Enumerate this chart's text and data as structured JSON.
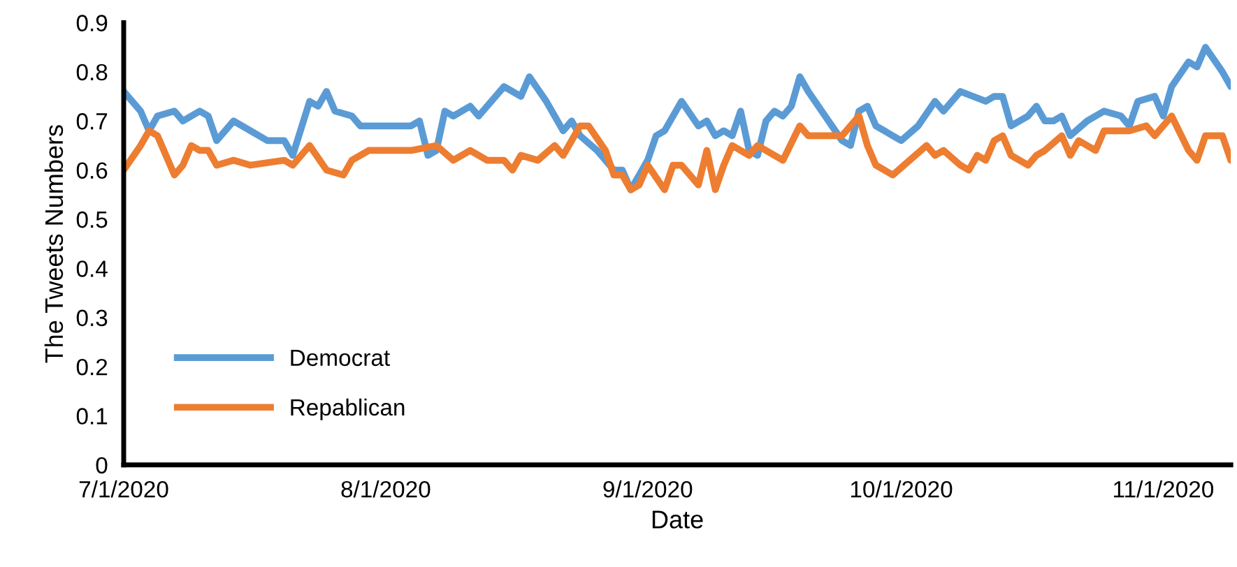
{
  "chart_data": {
    "type": "line",
    "xlabel": "Date",
    "ylabel": "The Tweets Numbers",
    "xlim": [
      "2020-07-01",
      "2020-11-09"
    ],
    "ylim": [
      0,
      0.9
    ],
    "xticks": [
      {
        "value": "2020-07-01",
        "label": "7/1/2020"
      },
      {
        "value": "2020-08-01",
        "label": "8/1/2020"
      },
      {
        "value": "2020-09-01",
        "label": "9/1/2020"
      },
      {
        "value": "2020-10-01",
        "label": "10/1/2020"
      },
      {
        "value": "2020-11-01",
        "label": "11/1/2020"
      }
    ],
    "yticks": [
      0,
      0.1,
      0.2,
      0.3,
      0.4,
      0.5,
      0.6,
      0.7,
      0.8,
      0.9
    ],
    "grid": false,
    "legend": "bottom left",
    "marker": "none",
    "line_style": "solid",
    "series": [
      {
        "name": "Democrat",
        "color": "#5b9bd5",
        "x": [
          "2020-07-01",
          "2020-07-03",
          "2020-07-04",
          "2020-07-05",
          "2020-07-07",
          "2020-07-08",
          "2020-07-10",
          "2020-07-11",
          "2020-07-12",
          "2020-07-14",
          "2020-07-16",
          "2020-07-18",
          "2020-07-20",
          "2020-07-21",
          "2020-07-23",
          "2020-07-24",
          "2020-07-25",
          "2020-07-26",
          "2020-07-28",
          "2020-07-29",
          "2020-07-30",
          "2020-08-04",
          "2020-08-05",
          "2020-08-06",
          "2020-08-07",
          "2020-08-08",
          "2020-08-09",
          "2020-08-11",
          "2020-08-12",
          "2020-08-13",
          "2020-08-15",
          "2020-08-17",
          "2020-08-18",
          "2020-08-20",
          "2020-08-22",
          "2020-08-23",
          "2020-08-24",
          "2020-08-26",
          "2020-08-28",
          "2020-08-29",
          "2020-08-30",
          "2020-09-01",
          "2020-09-02",
          "2020-09-03",
          "2020-09-05",
          "2020-09-07",
          "2020-09-08",
          "2020-09-09",
          "2020-09-10",
          "2020-09-11",
          "2020-09-12",
          "2020-09-13",
          "2020-09-14",
          "2020-09-15",
          "2020-09-16",
          "2020-09-17",
          "2020-09-18",
          "2020-09-19",
          "2020-09-20",
          "2020-09-22",
          "2020-09-24",
          "2020-09-25",
          "2020-09-26",
          "2020-09-27",
          "2020-09-28",
          "2020-09-29",
          "2020-10-01",
          "2020-10-03",
          "2020-10-05",
          "2020-10-06",
          "2020-10-08",
          "2020-10-11",
          "2020-10-12",
          "2020-10-13",
          "2020-10-14",
          "2020-10-16",
          "2020-10-17",
          "2020-10-18",
          "2020-10-19",
          "2020-10-20",
          "2020-10-21",
          "2020-10-23",
          "2020-10-25",
          "2020-10-27",
          "2020-10-28",
          "2020-10-29",
          "2020-10-31",
          "2020-11-01",
          "2020-11-02",
          "2020-11-04",
          "2020-11-05",
          "2020-11-06",
          "2020-11-08",
          "2020-11-09"
        ],
        "values": [
          0.76,
          0.72,
          0.68,
          0.71,
          0.72,
          0.7,
          0.72,
          0.71,
          0.66,
          0.7,
          0.68,
          0.66,
          0.66,
          0.63,
          0.74,
          0.73,
          0.76,
          0.72,
          0.71,
          0.69,
          0.69,
          0.69,
          0.7,
          0.63,
          0.64,
          0.72,
          0.71,
          0.73,
          0.71,
          0.73,
          0.77,
          0.75,
          0.79,
          0.74,
          0.68,
          0.7,
          0.67,
          0.64,
          0.6,
          0.6,
          0.56,
          0.62,
          0.67,
          0.68,
          0.74,
          0.69,
          0.7,
          0.67,
          0.68,
          0.67,
          0.72,
          0.64,
          0.63,
          0.7,
          0.72,
          0.71,
          0.73,
          0.79,
          0.76,
          0.71,
          0.66,
          0.65,
          0.72,
          0.73,
          0.69,
          0.68,
          0.66,
          0.69,
          0.74,
          0.72,
          0.76,
          0.74,
          0.75,
          0.75,
          0.69,
          0.71,
          0.73,
          0.7,
          0.7,
          0.71,
          0.67,
          0.7,
          0.72,
          0.71,
          0.69,
          0.74,
          0.75,
          0.71,
          0.77,
          0.82,
          0.81,
          0.85,
          0.8,
          0.77
        ]
      },
      {
        "name": "Repablican",
        "color": "#ed7d31",
        "x": [
          "2020-07-01",
          "2020-07-03",
          "2020-07-04",
          "2020-07-05",
          "2020-07-06",
          "2020-07-07",
          "2020-07-08",
          "2020-07-09",
          "2020-07-10",
          "2020-07-11",
          "2020-07-12",
          "2020-07-14",
          "2020-07-16",
          "2020-07-20",
          "2020-07-21",
          "2020-07-23",
          "2020-07-25",
          "2020-07-27",
          "2020-07-28",
          "2020-07-30",
          "2020-08-04",
          "2020-08-07",
          "2020-08-09",
          "2020-08-11",
          "2020-08-12",
          "2020-08-13",
          "2020-08-15",
          "2020-08-16",
          "2020-08-17",
          "2020-08-19",
          "2020-08-21",
          "2020-08-22",
          "2020-08-24",
          "2020-08-25",
          "2020-08-27",
          "2020-08-28",
          "2020-08-29",
          "2020-08-30",
          "2020-08-31",
          "2020-09-01",
          "2020-09-03",
          "2020-09-04",
          "2020-09-05",
          "2020-09-07",
          "2020-09-08",
          "2020-09-09",
          "2020-09-10",
          "2020-09-11",
          "2020-09-13",
          "2020-09-14",
          "2020-09-16",
          "2020-09-17",
          "2020-09-19",
          "2020-09-20",
          "2020-09-21",
          "2020-09-23",
          "2020-09-24",
          "2020-09-26",
          "2020-09-27",
          "2020-09-28",
          "2020-09-30",
          "2020-10-02",
          "2020-10-04",
          "2020-10-05",
          "2020-10-06",
          "2020-10-08",
          "2020-10-09",
          "2020-10-10",
          "2020-10-11",
          "2020-10-12",
          "2020-10-13",
          "2020-10-14",
          "2020-10-16",
          "2020-10-17",
          "2020-10-18",
          "2020-10-20",
          "2020-10-21",
          "2020-10-22",
          "2020-10-24",
          "2020-10-25",
          "2020-10-28",
          "2020-10-30",
          "2020-10-31",
          "2020-11-02",
          "2020-11-04",
          "2020-11-05",
          "2020-11-06",
          "2020-11-08",
          "2020-11-09"
        ],
        "values": [
          0.6,
          0.65,
          0.68,
          0.67,
          0.63,
          0.59,
          0.61,
          0.65,
          0.64,
          0.64,
          0.61,
          0.62,
          0.61,
          0.62,
          0.61,
          0.65,
          0.6,
          0.59,
          0.62,
          0.64,
          0.64,
          0.65,
          0.62,
          0.64,
          0.63,
          0.62,
          0.62,
          0.6,
          0.63,
          0.62,
          0.65,
          0.63,
          0.69,
          0.69,
          0.64,
          0.59,
          0.59,
          0.56,
          0.57,
          0.61,
          0.56,
          0.61,
          0.61,
          0.57,
          0.64,
          0.56,
          0.61,
          0.65,
          0.63,
          0.65,
          0.63,
          0.62,
          0.69,
          0.67,
          0.67,
          0.67,
          0.67,
          0.71,
          0.65,
          0.61,
          0.59,
          0.62,
          0.65,
          0.63,
          0.64,
          0.61,
          0.6,
          0.63,
          0.62,
          0.66,
          0.67,
          0.63,
          0.61,
          0.63,
          0.64,
          0.67,
          0.63,
          0.66,
          0.64,
          0.68,
          0.68,
          0.69,
          0.67,
          0.71,
          0.64,
          0.62,
          0.67,
          0.67,
          0.62
        ]
      }
    ]
  }
}
